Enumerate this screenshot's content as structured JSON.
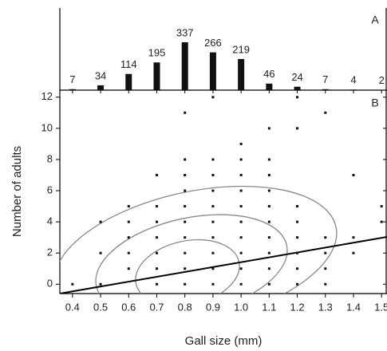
{
  "chart_data": [
    {
      "type": "bar",
      "panel_label": "A",
      "x": [
        0.4,
        0.5,
        0.6,
        0.7,
        0.8,
        0.9,
        1.0,
        1.1,
        1.2,
        1.3,
        1.4,
        1.5
      ],
      "values": [
        7,
        34,
        114,
        195,
        337,
        266,
        219,
        46,
        24,
        7,
        4,
        2
      ],
      "xlim": [
        0.355,
        1.5165
      ],
      "color": "#111111"
    },
    {
      "type": "scatter",
      "panel_label": "B",
      "x_label": "Gall size (mm)",
      "y_label": "Number of adults",
      "x": [
        0.4,
        0.5,
        0.5,
        0.5,
        0.6,
        0.6,
        0.6,
        0.6,
        0.6,
        0.7,
        0.7,
        0.7,
        0.7,
        0.7,
        0.7,
        0.7,
        0.8,
        0.8,
        0.8,
        0.8,
        0.8,
        0.8,
        0.8,
        0.8,
        0.8,
        0.8,
        0.9,
        0.9,
        0.9,
        0.9,
        0.9,
        0.9,
        0.9,
        0.9,
        0.9,
        0.9,
        1.0,
        1.0,
        1.0,
        1.0,
        1.0,
        1.0,
        1.0,
        1.0,
        1.0,
        1.0,
        1.1,
        1.1,
        1.1,
        1.1,
        1.1,
        1.1,
        1.1,
        1.1,
        1.1,
        1.1,
        1.2,
        1.2,
        1.2,
        1.2,
        1.2,
        1.2,
        1.2,
        1.2,
        1.3,
        1.3,
        1.3,
        1.3,
        1.3,
        1.4,
        1.4,
        1.4,
        1.5,
        1.5
      ],
      "y": [
        0,
        0,
        2,
        4,
        1,
        2,
        3,
        4,
        5,
        0,
        1,
        2,
        3,
        4,
        5,
        7,
        0,
        1,
        2,
        3,
        4,
        5,
        6,
        7,
        8,
        11,
        0,
        1,
        2,
        3,
        4,
        5,
        6,
        7,
        8,
        12,
        0,
        1,
        2,
        3,
        4,
        5,
        6,
        7,
        8,
        9,
        0,
        1,
        2,
        3,
        4,
        5,
        6,
        7,
        8,
        10,
        0,
        1,
        2,
        3,
        4,
        5,
        10,
        12,
        0,
        1,
        2,
        3,
        11,
        2,
        3,
        7,
        4,
        5
      ],
      "color": "#111111",
      "xlim": [
        0.355,
        1.5165
      ],
      "ylim": [
        -0.6,
        12.45
      ],
      "xticks": [
        0.4,
        0.5,
        0.6,
        0.7,
        0.8,
        0.9,
        {
          "value": 1,
          "label": "1.0"
        },
        1.1,
        1.2,
        1.3,
        1.4,
        1.5
      ],
      "yticks": [
        0,
        2,
        4,
        6,
        8,
        10,
        12
      ]
    }
  ]
}
